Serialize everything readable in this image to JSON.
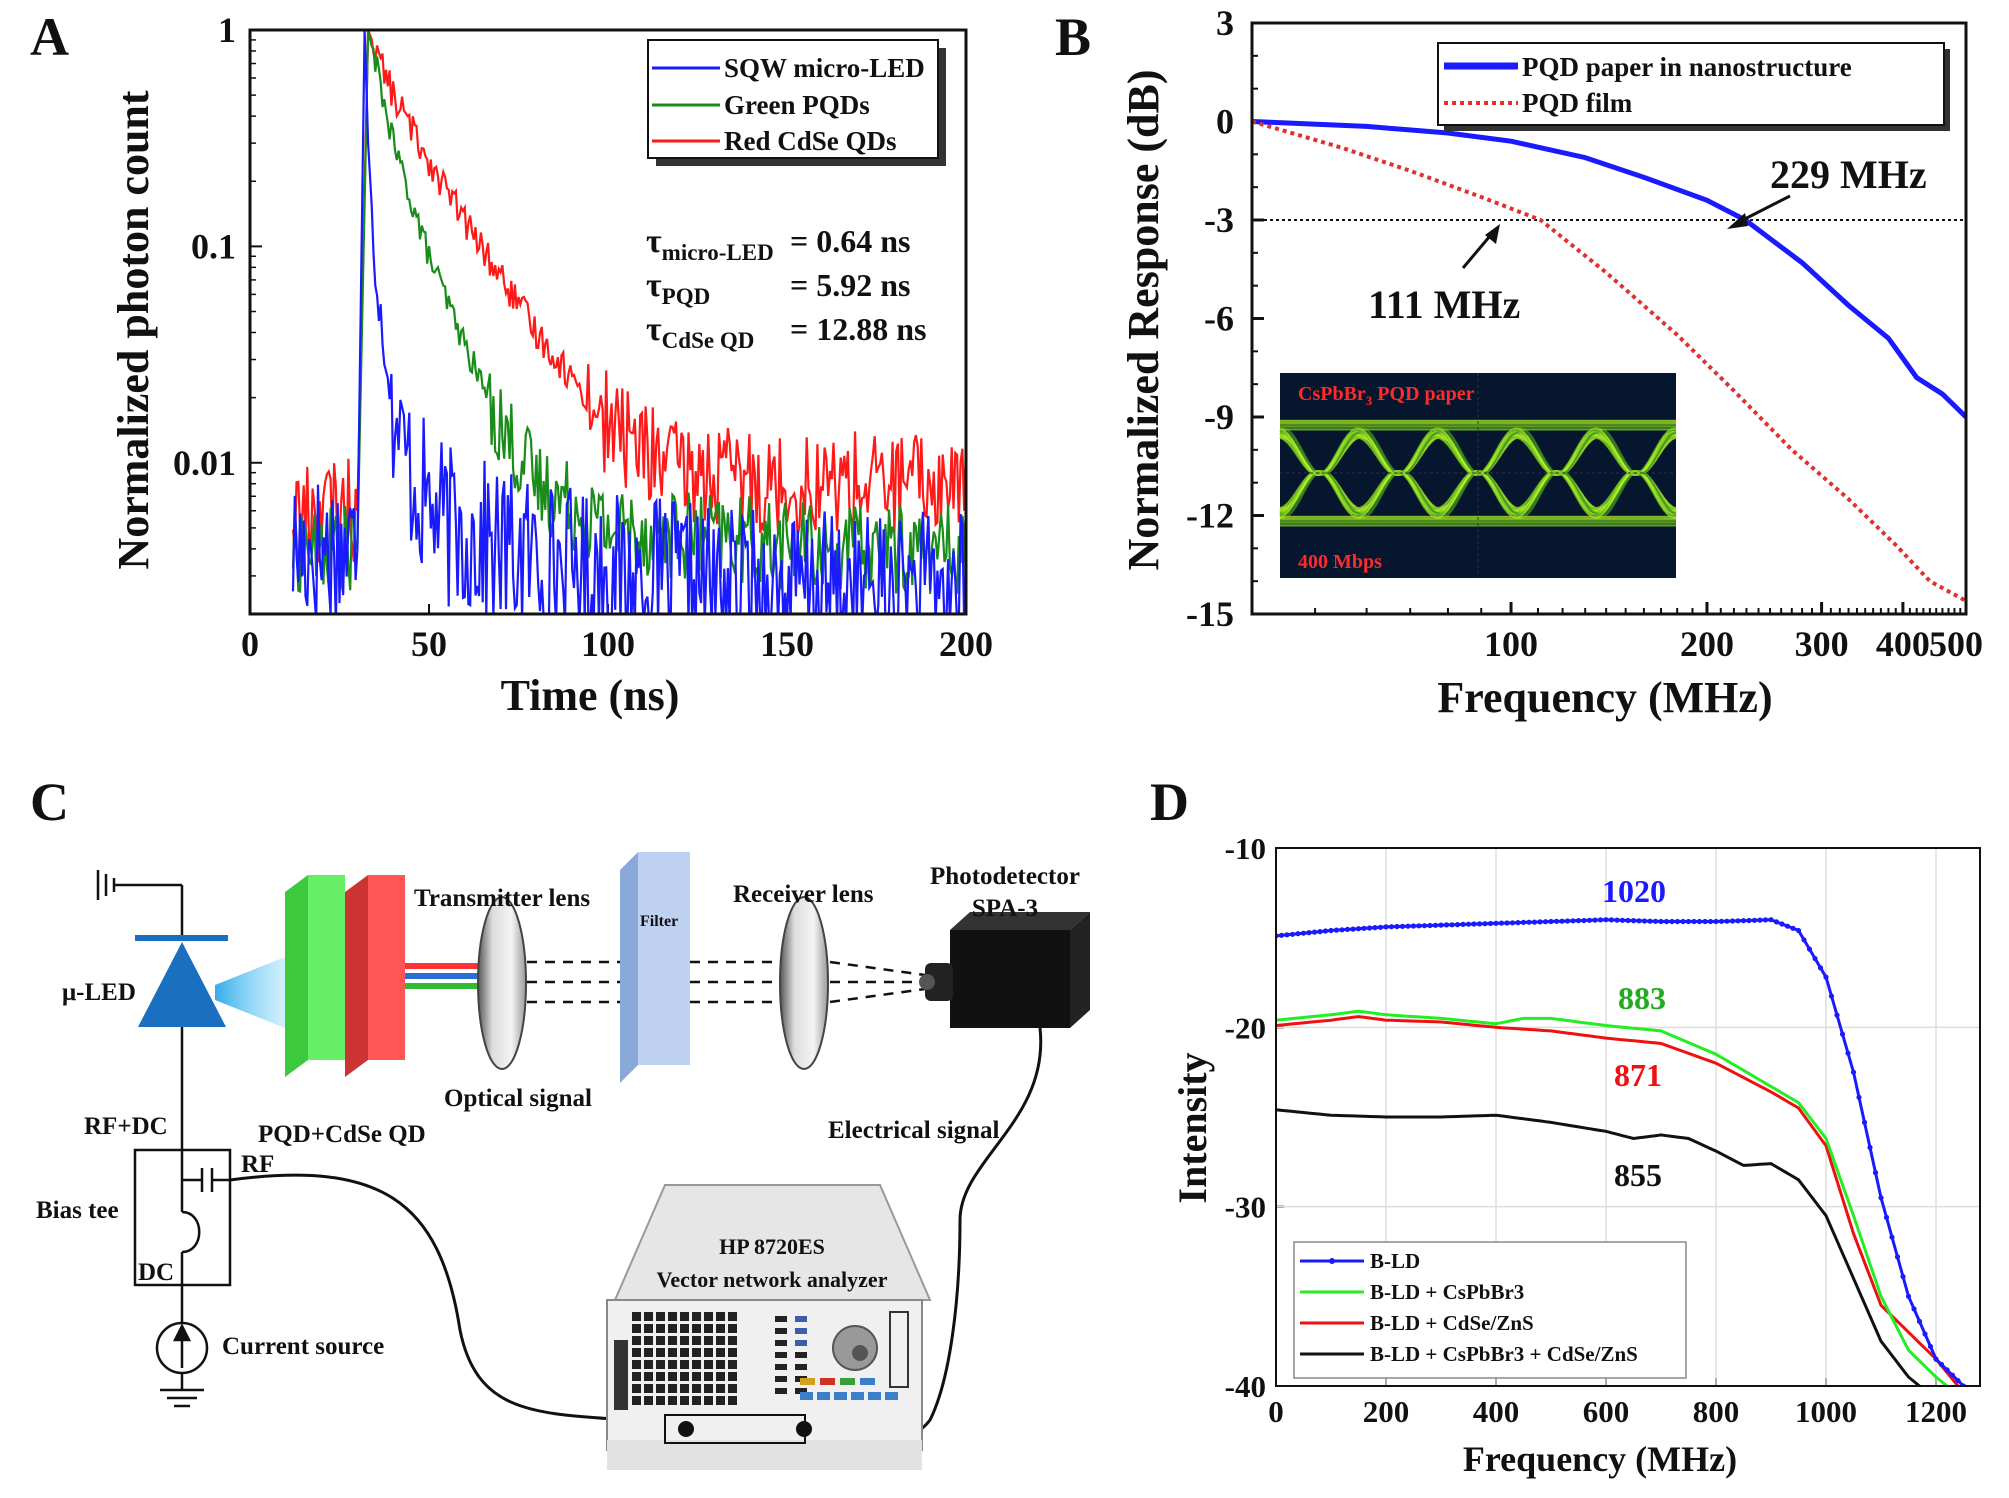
{
  "panels": {
    "a": {
      "letter": "A",
      "ylabel": "Normalized photon count",
      "xlabel": "Time (ns)",
      "x_ticks": [
        "0",
        "50",
        "100",
        "150",
        "200"
      ],
      "y_ticks": [
        "1",
        "0.1",
        "0.01"
      ],
      "legend": [
        "SQW micro-LED",
        "Green PQDs",
        "Red CdSe QDs"
      ],
      "tau_rows": [
        {
          "label": "τ",
          "sub": "micro-LED",
          "value": "= 0.64 ns"
        },
        {
          "label": "τ",
          "sub": "PQD",
          "value": "= 5.92 ns"
        },
        {
          "label": "τ",
          "sub": "CdSe QD",
          "value": "= 12.88 ns"
        }
      ]
    },
    "b": {
      "letter": "B",
      "ylabel": "Normalized Response (dB)",
      "xlabel": "Frequency (MHz)",
      "x_ticks": [
        "100",
        "200",
        "300",
        "400",
        "500"
      ],
      "y_ticks": [
        "3",
        "0",
        "-3",
        "-6",
        "-9",
        "-12",
        "-15"
      ],
      "legend": [
        "PQD paper in nanostructure",
        "PQD film"
      ],
      "annotations": [
        "229 MHz",
        "111 MHz"
      ],
      "inset_title": "CsPbBr",
      "inset_title_sub": "3",
      "inset_title_rest": " PQD paper",
      "inset_rate": "400 Mbps"
    },
    "c": {
      "letter": "C",
      "labels": {
        "mu_led": "μ-LED",
        "pqd_cdse": "PQD+CdSe QD",
        "transmitter_lens": "Transmitter lens",
        "filter": "Filter",
        "receiver_lens": "Receiver lens",
        "photodetector_1": "Photodetector",
        "photodetector_2": "SPA-3",
        "optical_signal": "Optical signal",
        "electrical_signal": "Electrical signal",
        "rf_dc": "RF+DC",
        "rf": "RF",
        "bias_tee": "Bias tee",
        "dc": "DC",
        "current_source": "Current source",
        "vna_1": "HP 8720ES",
        "vna_2": "Vector network analyzer"
      }
    },
    "d": {
      "letter": "D",
      "ylabel": "Intensity",
      "xlabel": "Frequency (MHz)",
      "x_ticks": [
        "0",
        "200",
        "400",
        "600",
        "800",
        "1000",
        "1200"
      ],
      "y_ticks": [
        "-10",
        "-20",
        "-30",
        "-40"
      ],
      "legend": [
        "B-LD",
        "B-LD + CsPbBr3",
        "B-LD + CdSe/ZnS",
        "B-LD + CsPbBr3 + CdSe/ZnS"
      ],
      "value_labels": [
        "1020",
        "883",
        "871",
        "855"
      ]
    }
  },
  "colors": {
    "blue": "#1a1aff",
    "green": "#1a8c1a",
    "red": "#ff1a1a",
    "black": "#111111",
    "lime": "#22ee22",
    "red_d": "#ee1111"
  },
  "chart_data": [
    {
      "panel": "A",
      "type": "line",
      "y_scale": "log",
      "xlim": [
        0,
        200
      ],
      "ylim": [
        0.002,
        1
      ],
      "series": [
        {
          "name": "SQW micro-LED",
          "x": [
            12,
            30,
            32,
            33,
            35,
            38,
            42,
            48,
            55,
            70,
            100,
            150,
            200
          ],
          "y": [
            0.004,
            0.004,
            1,
            0.3,
            0.08,
            0.03,
            0.012,
            0.007,
            0.005,
            0.004,
            0.003,
            0.0025,
            0.0025
          ]
        },
        {
          "name": "Green PQDs",
          "x": [
            12,
            30,
            33,
            40,
            50,
            60,
            70,
            80,
            100,
            130,
            160,
            200
          ],
          "y": [
            0.004,
            0.004,
            1,
            0.3,
            0.09,
            0.035,
            0.015,
            0.008,
            0.005,
            0.0045,
            0.004,
            0.004
          ]
        },
        {
          "name": "Red CdSe QDs",
          "x": [
            12,
            30,
            33,
            40,
            50,
            60,
            80,
            100,
            120,
            150,
            180,
            200
          ],
          "y": [
            0.006,
            0.006,
            1,
            0.5,
            0.25,
            0.13,
            0.04,
            0.015,
            0.009,
            0.008,
            0.008,
            0.008
          ]
        }
      ]
    },
    {
      "panel": "B",
      "type": "line",
      "x_scale": "log",
      "xlim": [
        40,
        500
      ],
      "ylim": [
        -15,
        3
      ],
      "series": [
        {
          "name": "PQD paper in nanostructure",
          "x": [
            40,
            60,
            80,
            100,
            130,
            160,
            200,
            229,
            280,
            330,
            380,
            420,
            460,
            500
          ],
          "y": [
            0,
            -0.15,
            -0.35,
            -0.6,
            -1.1,
            -1.7,
            -2.4,
            -3,
            -4.3,
            -5.6,
            -6.6,
            -7.8,
            -8.3,
            -9
          ]
        },
        {
          "name": "PQD film",
          "x": [
            40,
            55,
            70,
            90,
            111,
            140,
            180,
            220,
            270,
            330,
            390,
            440,
            500
          ],
          "y": [
            0,
            -0.8,
            -1.5,
            -2.3,
            -3,
            -4.6,
            -6.5,
            -8.2,
            -10,
            -11.5,
            -12.9,
            -14,
            -14.6
          ]
        }
      ]
    },
    {
      "panel": "D",
      "type": "line",
      "xlim": [
        0,
        1280
      ],
      "ylim": [
        -40,
        -10
      ],
      "series": [
        {
          "name": "B-LD",
          "x": [
            0,
            100,
            200,
            300,
            400,
            500,
            600,
            700,
            800,
            900,
            950,
            1000,
            1050,
            1100,
            1150,
            1200,
            1250
          ],
          "y": [
            -14.9,
            -14.6,
            -14.4,
            -14.3,
            -14.2,
            -14.1,
            -14.0,
            -14.1,
            -14.1,
            -14.0,
            -14.6,
            -17.2,
            -22.5,
            -29.5,
            -35.0,
            -38.5,
            -40.0
          ]
        },
        {
          "name": "B-LD + CsPbBr3",
          "x": [
            0,
            100,
            150,
            200,
            300,
            400,
            450,
            500,
            600,
            700,
            800,
            900,
            950,
            1000,
            1050,
            1100,
            1150,
            1200,
            1220
          ],
          "y": [
            -19.6,
            -19.3,
            -19.1,
            -19.3,
            -19.5,
            -19.8,
            -19.5,
            -19.5,
            -19.9,
            -20.2,
            -21.5,
            -23.3,
            -24.2,
            -26.2,
            -30.5,
            -35.0,
            -38.0,
            -39.5,
            -40.0
          ]
        },
        {
          "name": "B-LD + CdSe/ZnS",
          "x": [
            0,
            100,
            150,
            200,
            300,
            400,
            500,
            600,
            700,
            800,
            900,
            950,
            1000,
            1050,
            1100,
            1150,
            1200,
            1240
          ],
          "y": [
            -19.9,
            -19.6,
            -19.4,
            -19.6,
            -19.7,
            -20.0,
            -20.2,
            -20.6,
            -20.9,
            -22.0,
            -23.6,
            -24.5,
            -26.6,
            -31.5,
            -35.5,
            -37.0,
            -38.5,
            -40.0
          ]
        },
        {
          "name": "B-LD + CsPbBr3 + CdSe/ZnS",
          "x": [
            0,
            100,
            200,
            300,
            400,
            500,
            600,
            650,
            700,
            750,
            800,
            850,
            900,
            950,
            1000,
            1050,
            1100,
            1150,
            1170
          ],
          "y": [
            -24.6,
            -24.9,
            -25.0,
            -25.0,
            -24.9,
            -25.3,
            -25.8,
            -26.2,
            -26.0,
            -26.2,
            -26.9,
            -27.7,
            -27.6,
            -28.5,
            -30.5,
            -34.0,
            -37.5,
            -39.5,
            -40.0
          ]
        }
      ]
    }
  ]
}
